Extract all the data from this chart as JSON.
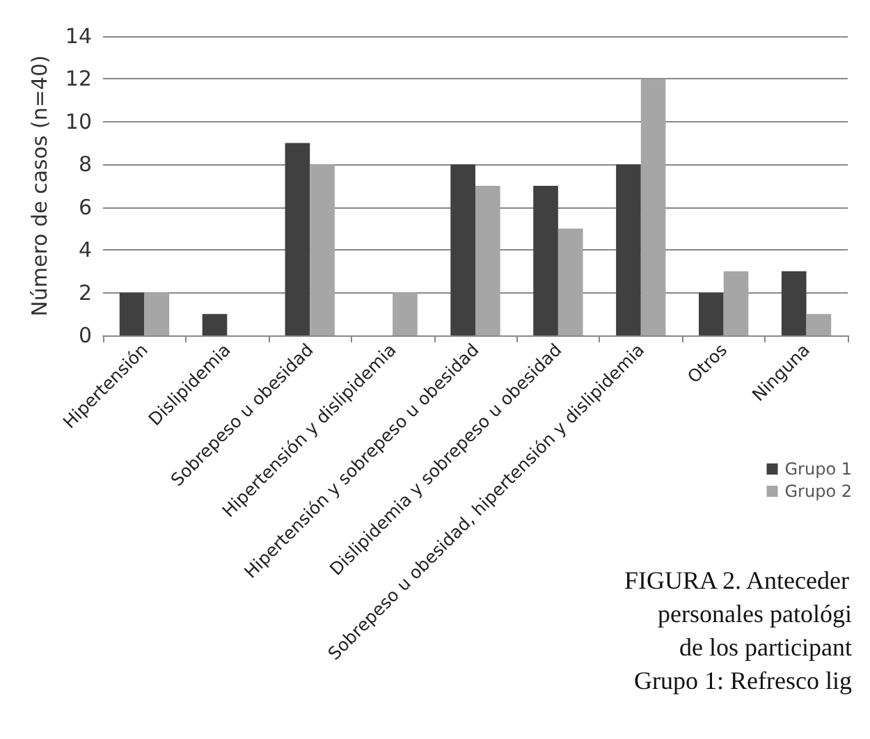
{
  "chart_data": {
    "type": "bar",
    "ylabel": "Número de casos (n=40)",
    "categories": [
      "Hipertensión",
      "Dislipidemia",
      "Sobrepeso u obesidad",
      "Hipertensión y dislipidemia",
      "Hipertensión y sobrepeso u obesidad",
      "Dislipidemia y sobrepeso u obesidad",
      "Sobrepeso u obesidad, hipertensión y dislipidemia",
      "Otros",
      "Ninguna"
    ],
    "series": [
      {
        "name": "Grupo 1",
        "color": "#404040",
        "values": [
          2,
          1,
          9,
          0,
          8,
          7,
          8,
          2,
          3
        ]
      },
      {
        "name": "Grupo 2",
        "color": "#a6a6a6",
        "values": [
          2,
          0,
          8,
          2,
          7,
          5,
          12,
          3,
          1
        ]
      }
    ],
    "ylim": [
      0,
      14
    ],
    "yticks": [
      0,
      2,
      4,
      6,
      8,
      10,
      12,
      14
    ],
    "grid": "y",
    "legend": "right",
    "annotations": [
      "FIGURA 2. Anteceder",
      "personales patológi",
      "de los participant",
      "Grupo 1: Refresco lig"
    ]
  }
}
